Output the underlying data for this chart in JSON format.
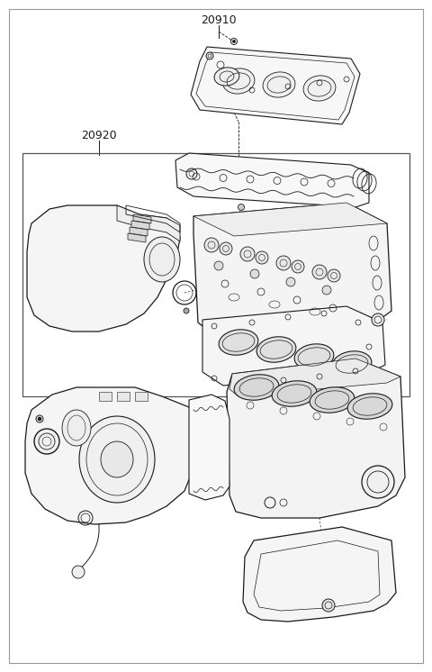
{
  "label_20910": "20910",
  "label_20920": "20920",
  "background_color": "#ffffff",
  "line_color": "#1a1a1a",
  "border_color": "#aaaaaa",
  "fig_width": 4.8,
  "fig_height": 7.46,
  "dpi": 100
}
